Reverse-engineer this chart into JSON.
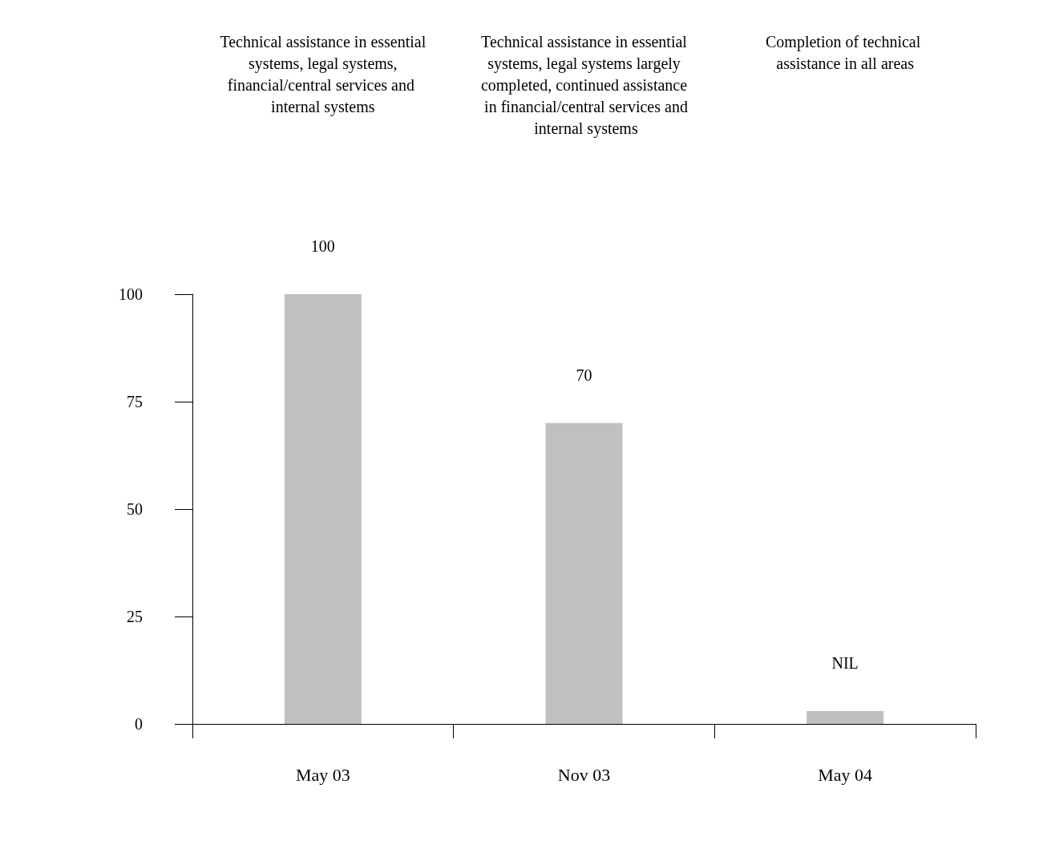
{
  "chart_data": {
    "type": "bar",
    "categories": [
      "May 03",
      "Nov 03",
      "May 04"
    ],
    "values": [
      100,
      70,
      3
    ],
    "color": "#c0c0c0",
    "value_labels": [
      "100",
      "70",
      "NIL"
    ],
    "ylim": [
      0,
      100
    ],
    "yticks": [
      0,
      25,
      50,
      75,
      100
    ],
    "grid": false,
    "annotations": [
      "Technical assistance in essential systems, legal systems, financial/central services and internal systems",
      "Technical assistance in essential systems, legal systems largely completed, continued assistance in financial/central services and internal systems",
      "Completion of technical assistance in all areas"
    ]
  }
}
